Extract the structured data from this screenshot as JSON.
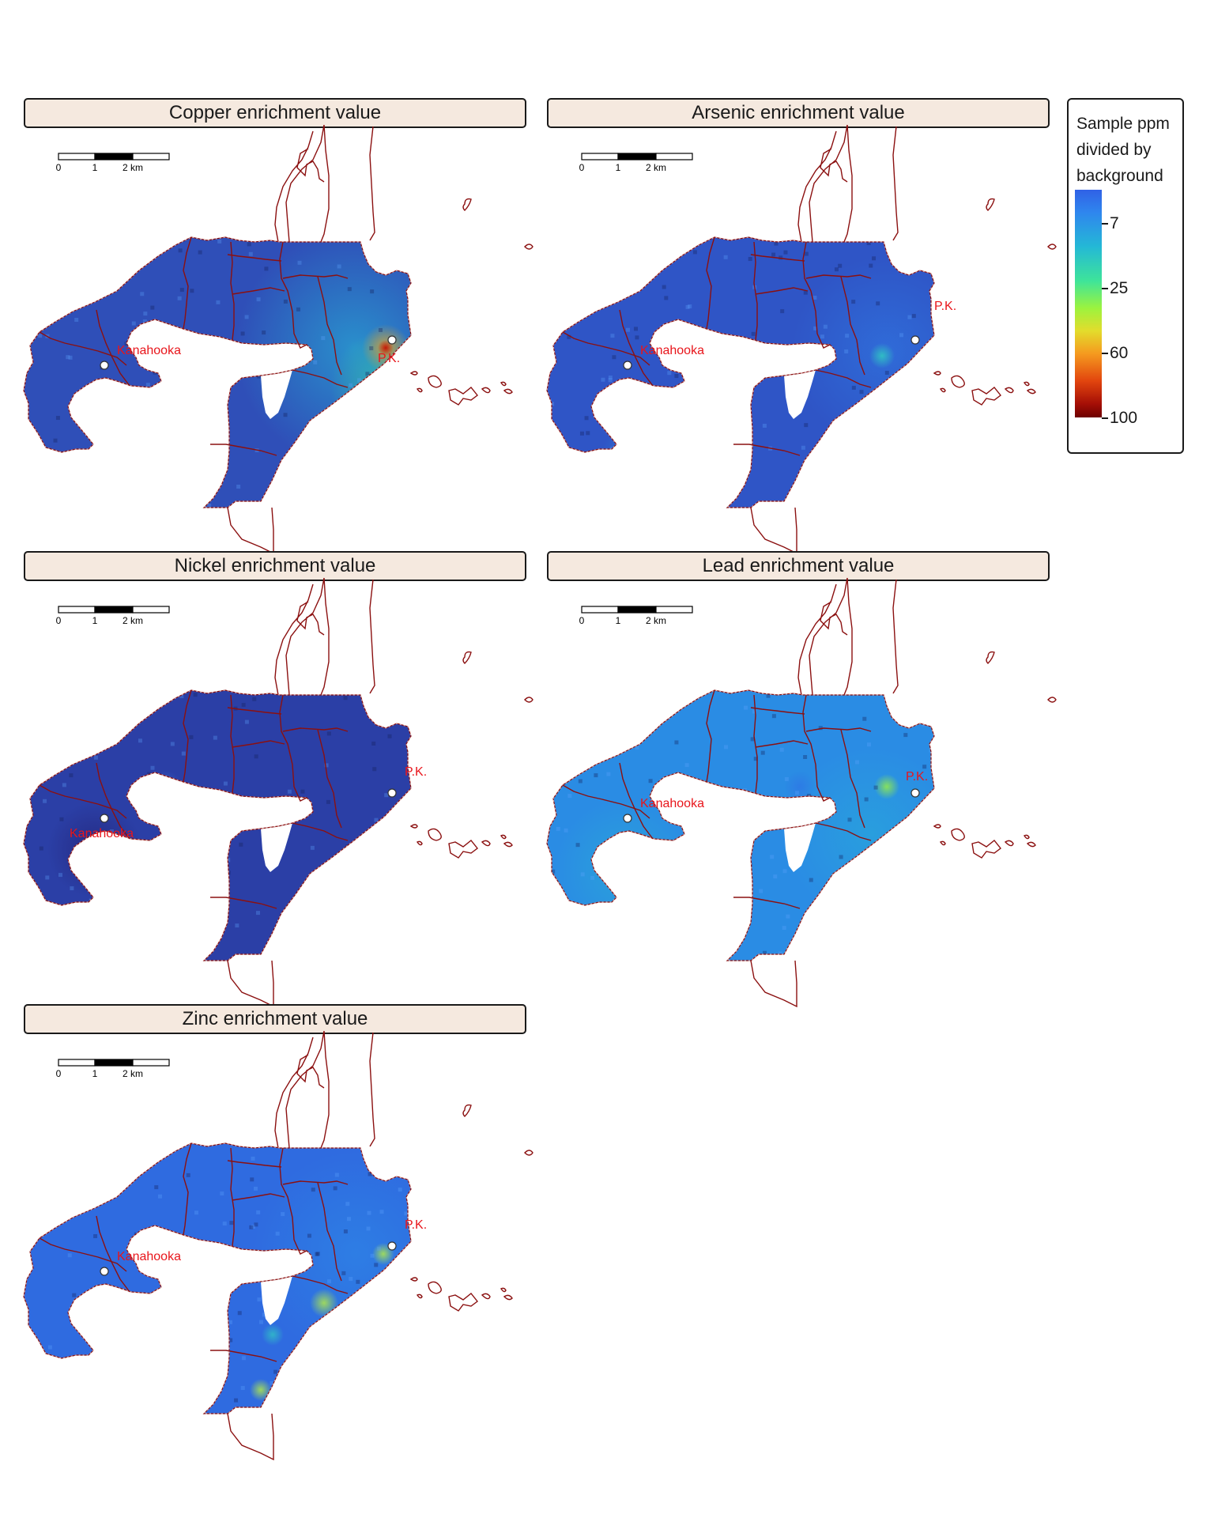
{
  "panels": [
    {
      "title": "Copper enrichment value",
      "kanahooka_label": "Kanahooka",
      "pk_label": "P.K.",
      "base_color": "#2f4fb8",
      "hotspots": [
        {
          "x": 418,
          "y": 268,
          "r": 150,
          "c": "#25c4dc",
          "o": 0.55
        },
        {
          "x": 458,
          "y": 316,
          "r": 70,
          "c": "#39e0a0",
          "o": 0.55
        },
        {
          "x": 458,
          "y": 268,
          "r": 30,
          "c": "#f0a020",
          "o": 0.8
        },
        {
          "x": 458,
          "y": 268,
          "r": 10,
          "c": "#c0180a",
          "o": 1
        },
        {
          "x": 500,
          "y": 370,
          "r": 40,
          "c": "#2fb6d8",
          "o": 0.5
        }
      ]
    },
    {
      "title": "Arsenic enrichment value",
      "kanahooka_label": "Kanahooka",
      "pk_label": "P.K.",
      "base_color": "#2f55c6",
      "hotspots": [
        {
          "x": 430,
          "y": 272,
          "r": 120,
          "c": "#3086ee",
          "o": 0.45
        },
        {
          "x": 424,
          "y": 278,
          "r": 16,
          "c": "#30d0c0",
          "o": 0.8
        },
        {
          "x": 118,
          "y": 410,
          "r": 50,
          "c": "#2fa8e0",
          "o": 0.5
        },
        {
          "x": 395,
          "y": 410,
          "r": 10,
          "c": "#30d0c0",
          "o": 0.7
        }
      ]
    },
    {
      "title": "Nickel enrichment value",
      "kanahooka_label": "Kanahooka",
      "pk_label": "P.K.",
      "base_color": "#2b3fa6",
      "hotspots": [
        {
          "x": 405,
          "y": 340,
          "r": 8,
          "c": "#30d0c0",
          "o": 0.8
        },
        {
          "x": 180,
          "y": 250,
          "r": 20,
          "c": "#3a7ae0",
          "o": 0.5
        },
        {
          "x": 90,
          "y": 330,
          "r": 60,
          "c": "#221e6e",
          "o": 0.6
        }
      ]
    },
    {
      "title": "Lead enrichment value",
      "kanahooka_label": "Kanahooka",
      "pk_label": "P.K.",
      "base_color": "#2a8ce4",
      "hotspots": [
        {
          "x": 100,
          "y": 355,
          "r": 90,
          "c": "#2bb7d0",
          "o": 0.5
        },
        {
          "x": 105,
          "y": 358,
          "r": 12,
          "c": "#d8e02a",
          "o": 0.9
        },
        {
          "x": 410,
          "y": 310,
          "r": 110,
          "c": "#28b0d8",
          "o": 0.5
        },
        {
          "x": 468,
          "y": 330,
          "r": 22,
          "c": "#e8c028",
          "o": 0.8
        },
        {
          "x": 430,
          "y": 250,
          "r": 16,
          "c": "#9cf33e",
          "o": 0.8
        },
        {
          "x": 360,
          "y": 395,
          "r": 18,
          "c": "#e07418",
          "o": 0.9
        },
        {
          "x": 320,
          "y": 250,
          "r": 20,
          "c": "#2f70e6",
          "o": 0.6
        }
      ]
    },
    {
      "title": "Zinc enrichment value",
      "kanahooka_label": "Kanahooka",
      "pk_label": "P.K.",
      "base_color": "#2f6be0",
      "hotspots": [
        {
          "x": 420,
          "y": 268,
          "r": 130,
          "c": "#2c90e8",
          "o": 0.5
        },
        {
          "x": 380,
          "y": 330,
          "r": 18,
          "c": "#b8f040",
          "o": 0.8
        },
        {
          "x": 455,
          "y": 268,
          "r": 14,
          "c": "#b8f040",
          "o": 0.8
        },
        {
          "x": 90,
          "y": 330,
          "r": 14,
          "c": "#30d0c0",
          "o": 0.7
        },
        {
          "x": 300,
          "y": 440,
          "r": 14,
          "c": "#b8f040",
          "o": 0.8
        },
        {
          "x": 315,
          "y": 370,
          "r": 14,
          "c": "#30d0c0",
          "o": 0.7
        }
      ]
    }
  ],
  "scalebar": {
    "labels": [
      "0",
      "1",
      "2 km"
    ]
  },
  "legend": {
    "title_lines": [
      "Sample ppm",
      "divided by",
      "background"
    ],
    "breaks": [
      "7",
      "25",
      "60",
      "100"
    ]
  },
  "colors": {
    "boundary": "#8b1010",
    "place_label": "#e8151b",
    "strip_fill": "#f5e9df"
  }
}
